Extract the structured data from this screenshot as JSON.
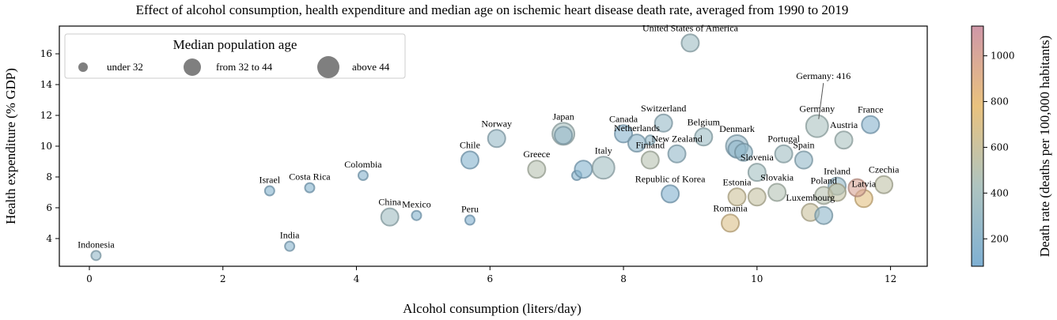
{
  "chart_data": {
    "type": "scatter",
    "title": "Effect of alcohol consumption, health expenditure and median age on ischemic heart disease death rate, averaged from 1990 to 2019",
    "xlabel": "Alcohol consumption (liters/day)",
    "ylabel": "Health expenditure (% GDP)",
    "xlim": [
      -0.45,
      12.55
    ],
    "ylim": [
      2.2,
      17.8
    ],
    "xticks": [
      0,
      2,
      4,
      6,
      8,
      10,
      12
    ],
    "yticks": [
      4,
      6,
      8,
      10,
      12,
      14,
      16
    ],
    "grid": false,
    "size_legend": {
      "title": "Median population age",
      "placement": "top-left",
      "entries": [
        {
          "label": "under 32",
          "size": "small"
        },
        {
          "label": "from 32 to 44",
          "size": "medium"
        },
        {
          "label": "above 44",
          "size": "large"
        }
      ]
    },
    "colorbar": {
      "label": "Death rate (deaths per 100,000 habitants)",
      "min": 80,
      "max": 1130,
      "ticks": [
        200,
        400,
        600,
        800,
        1000
      ],
      "colormap": [
        "#7fb0d3",
        "#aec4c0",
        "#e9c27e",
        "#cf97a8"
      ]
    },
    "annotation": {
      "text": "Germany: 416",
      "x": 10.9,
      "y": 11.3
    },
    "points": [
      {
        "label": "Indonesia",
        "x": 0.1,
        "y": 2.9,
        "death_rate": 250,
        "size": "small"
      },
      {
        "label": "India",
        "x": 3.0,
        "y": 3.5,
        "death_rate": 180,
        "size": "small"
      },
      {
        "label": "Israel",
        "x": 2.7,
        "y": 7.1,
        "death_rate": 150,
        "size": "small"
      },
      {
        "label": "Costa Rica",
        "x": 3.3,
        "y": 7.3,
        "death_rate": 150,
        "size": "small"
      },
      {
        "label": "Colombia",
        "x": 4.1,
        "y": 8.1,
        "death_rate": 170,
        "size": "small"
      },
      {
        "label": "China",
        "x": 4.5,
        "y": 5.4,
        "death_rate": 350,
        "size": "medium"
      },
      {
        "label": "Mexico",
        "x": 4.9,
        "y": 5.5,
        "death_rate": 150,
        "size": "small"
      },
      {
        "label": "Peru",
        "x": 5.7,
        "y": 5.2,
        "death_rate": 120,
        "size": "small"
      },
      {
        "label": "Chile",
        "x": 5.7,
        "y": 9.1,
        "death_rate": 150,
        "size": "medium"
      },
      {
        "label": "Norway",
        "x": 6.1,
        "y": 10.5,
        "death_rate": 280,
        "size": "medium"
      },
      {
        "label": "Greece",
        "x": 6.7,
        "y": 8.5,
        "death_rate": 500,
        "size": "medium"
      },
      {
        "label": "Japan",
        "x": 7.1,
        "y": 10.8,
        "death_rate": 400,
        "size": "large"
      },
      {
        "label": "",
        "x": 7.1,
        "y": 10.7,
        "death_rate": 260,
        "size": "medium"
      },
      {
        "label": "",
        "x": 7.3,
        "y": 8.1,
        "death_rate": 150,
        "size": "small"
      },
      {
        "label": "",
        "x": 7.4,
        "y": 8.5,
        "death_rate": 150,
        "size": "medium"
      },
      {
        "label": "Italy",
        "x": 7.7,
        "y": 8.6,
        "death_rate": 360,
        "size": "large"
      },
      {
        "label": "Canada",
        "x": 8.0,
        "y": 10.8,
        "death_rate": 160,
        "size": "medium"
      },
      {
        "label": "Switzerland",
        "x": 8.6,
        "y": 11.5,
        "death_rate": 280,
        "size": "medium"
      },
      {
        "label": "Netherlands",
        "x": 8.2,
        "y": 10.2,
        "death_rate": 200,
        "size": "medium"
      },
      {
        "label": "",
        "x": 8.4,
        "y": 10.4,
        "death_rate": 240,
        "size": "small"
      },
      {
        "label": "Finland",
        "x": 8.4,
        "y": 9.1,
        "death_rate": 500,
        "size": "medium"
      },
      {
        "label": "New Zealand",
        "x": 8.8,
        "y": 9.5,
        "death_rate": 250,
        "size": "medium"
      },
      {
        "label": "United States of America",
        "x": 9.0,
        "y": 16.7,
        "death_rate": 330,
        "size": "medium"
      },
      {
        "label": "Republic of Korea",
        "x": 8.7,
        "y": 6.9,
        "death_rate": 130,
        "size": "medium"
      },
      {
        "label": "Belgium",
        "x": 9.2,
        "y": 10.6,
        "death_rate": 320,
        "size": "medium"
      },
      {
        "label": "Denmark",
        "x": 9.7,
        "y": 10.0,
        "death_rate": 260,
        "size": "large"
      },
      {
        "label": "",
        "x": 9.7,
        "y": 9.8,
        "death_rate": 200,
        "size": "medium"
      },
      {
        "label": "",
        "x": 9.8,
        "y": 9.6,
        "death_rate": 230,
        "size": "medium"
      },
      {
        "label": "Slovenia",
        "x": 10.0,
        "y": 8.3,
        "death_rate": 380,
        "size": "medium"
      },
      {
        "label": "Romania",
        "x": 9.6,
        "y": 5.0,
        "death_rate": 700,
        "size": "medium"
      },
      {
        "label": "Estonia",
        "x": 9.7,
        "y": 6.7,
        "death_rate": 620,
        "size": "medium"
      },
      {
        "label": "",
        "x": 10.0,
        "y": 6.7,
        "death_rate": 580,
        "size": "medium"
      },
      {
        "label": "Slovakia",
        "x": 10.3,
        "y": 7.0,
        "death_rate": 480,
        "size": "medium"
      },
      {
        "label": "Portugal",
        "x": 10.4,
        "y": 9.5,
        "death_rate": 350,
        "size": "medium"
      },
      {
        "label": "Spain",
        "x": 10.7,
        "y": 9.1,
        "death_rate": 250,
        "size": "medium"
      },
      {
        "label": "Germany",
        "x": 10.9,
        "y": 11.3,
        "death_rate": 416,
        "size": "large"
      },
      {
        "label": "Austria",
        "x": 11.3,
        "y": 10.4,
        "death_rate": 420,
        "size": "medium"
      },
      {
        "label": "France",
        "x": 11.7,
        "y": 11.4,
        "death_rate": 170,
        "size": "medium"
      },
      {
        "label": "Ireland",
        "x": 11.2,
        "y": 7.4,
        "death_rate": 250,
        "size": "medium"
      },
      {
        "label": "Poland",
        "x": 11.0,
        "y": 6.8,
        "death_rate": 500,
        "size": "medium"
      },
      {
        "label": "",
        "x": 11.2,
        "y": 7.0,
        "death_rate": 560,
        "size": "medium"
      },
      {
        "label": "Latvia",
        "x": 11.6,
        "y": 6.6,
        "death_rate": 750,
        "size": "medium"
      },
      {
        "label": "",
        "x": 11.5,
        "y": 7.3,
        "death_rate": 1000,
        "size": "medium"
      },
      {
        "label": "Czechia",
        "x": 11.9,
        "y": 7.5,
        "death_rate": 550,
        "size": "medium"
      },
      {
        "label": "Luxembourg",
        "x": 10.8,
        "y": 5.7,
        "death_rate": 600,
        "size": "medium"
      },
      {
        "label": "",
        "x": 11.0,
        "y": 5.5,
        "death_rate": 220,
        "size": "medium"
      }
    ]
  }
}
